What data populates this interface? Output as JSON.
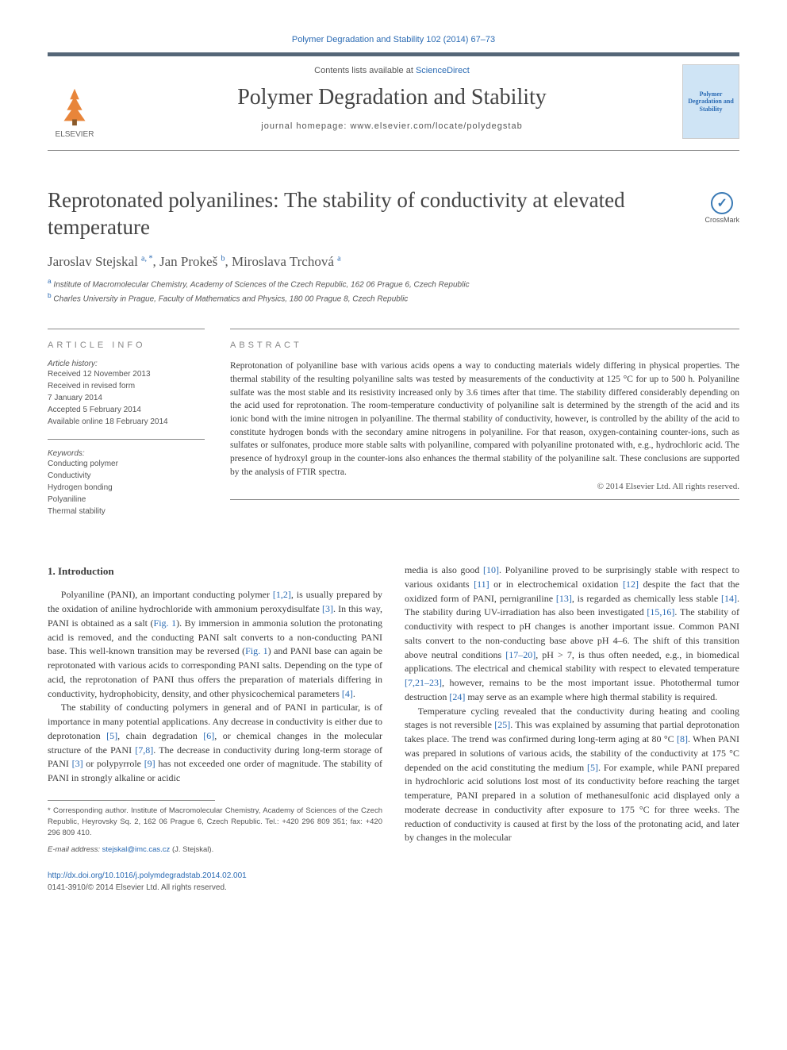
{
  "citation": "Polymer Degradation and Stability 102 (2014) 67–73",
  "header": {
    "contents_prefix": "Contents lists available at ",
    "contents_link": "ScienceDirect",
    "journal": "Polymer Degradation and Stability",
    "homepage_prefix": "journal homepage: ",
    "homepage": "www.elsevier.com/locate/polydegstab",
    "publisher": "ELSEVIER",
    "cover_text": "Polymer Degradation and Stability"
  },
  "crossmark": "CrossMark",
  "title": "Reprotonated polyanilines: The stability of conductivity at elevated temperature",
  "authors_html": "Jaroslav Stejskal <sup>a, *</sup>, Jan Prokeš <sup>b</sup>, Miroslava Trchová <sup>a</sup>",
  "affiliations": [
    "a Institute of Macromolecular Chemistry, Academy of Sciences of the Czech Republic, 162 06 Prague 6, Czech Republic",
    "b Charles University in Prague, Faculty of Mathematics and Physics, 180 00 Prague 8, Czech Republic"
  ],
  "article_info": {
    "heading": "ARTICLE INFO",
    "history_label": "Article history:",
    "history": [
      "Received 12 November 2013",
      "Received in revised form",
      "7 January 2014",
      "Accepted 5 February 2014",
      "Available online 18 February 2014"
    ],
    "keywords_label": "Keywords:",
    "keywords": [
      "Conducting polymer",
      "Conductivity",
      "Hydrogen bonding",
      "Polyaniline",
      "Thermal stability"
    ]
  },
  "abstract": {
    "heading": "ABSTRACT",
    "text": "Reprotonation of polyaniline base with various acids opens a way to conducting materials widely differing in physical properties. The thermal stability of the resulting polyaniline salts was tested by measurements of the conductivity at 125 °C for up to 500 h. Polyaniline sulfate was the most stable and its resistivity increased only by 3.6 times after that time. The stability differed considerably depending on the acid used for reprotonation. The room-temperature conductivity of polyaniline salt is determined by the strength of the acid and its ionic bond with the imine nitrogen in polyaniline. The thermal stability of conductivity, however, is controlled by the ability of the acid to constitute hydrogen bonds with the secondary amine nitrogens in polyaniline. For that reason, oxygen-containing counter-ions, such as sulfates or sulfonates, produce more stable salts with polyaniline, compared with polyaniline protonated with, e.g., hydrochloric acid. The presence of hydroxyl group in the counter-ions also enhances the thermal stability of the polyaniline salt. These conclusions are supported by the analysis of FTIR spectra.",
    "copyright": "© 2014 Elsevier Ltd. All rights reserved."
  },
  "intro": {
    "heading": "1. Introduction",
    "p1_a": "Polyaniline (PANI), an important conducting polymer ",
    "r1": "[1,2]",
    "p1_b": ", is usually prepared by the oxidation of aniline hydrochloride with ammonium peroxydisulfate ",
    "r2": "[3]",
    "p1_c": ". In this way, PANI is obtained as a salt (",
    "f1": "Fig. 1",
    "p1_d": "). By immersion in ammonia solution the protonating acid is removed, and the conducting PANI salt converts to a non-conducting PANI base. This well-known transition may be reversed (",
    "f2": "Fig. 1",
    "p1_e": ") and PANI base can again be reprotonated with various acids to corresponding PANI salts. Depending on the type of acid, the reprotonation of PANI thus offers the preparation of materials differing in conductivity, hydrophobicity, density, and other physicochemical parameters ",
    "r3": "[4]",
    "p1_f": ".",
    "p2_a": "The stability of conducting polymers in general and of PANI in particular, is of importance in many potential applications. Any decrease in conductivity is either due to deprotonation ",
    "r4": "[5]",
    "p2_b": ", chain degradation ",
    "r5": "[6]",
    "p2_c": ", or chemical changes in the molecular structure of the PANI ",
    "r6": "[7,8]",
    "p2_d": ". The decrease in conductivity during long-term storage of PANI ",
    "r7": "[3]",
    "p2_e": " or polypyrrole ",
    "r8": "[9]",
    "p2_f": " has not exceeded one order of magnitude. The stability of PANI in strongly alkaline or acidic ",
    "p3_a": "media is also good ",
    "r9": "[10]",
    "p3_b": ". Polyaniline proved to be surprisingly stable with respect to various oxidants ",
    "r10": "[11]",
    "p3_c": " or in electrochemical oxidation ",
    "r11": "[12]",
    "p3_d": " despite the fact that the oxidized form of PANI, pernigraniline ",
    "r12": "[13]",
    "p3_e": ", is regarded as chemically less stable ",
    "r13": "[14]",
    "p3_f": ". The stability during UV-irradiation has also been investigated ",
    "r14": "[15,16]",
    "p3_g": ". The stability of conductivity with respect to pH changes is another important issue. Common PANI salts convert to the non-conducting base above pH 4–6. The shift of this transition above neutral conditions ",
    "r15": "[17–20]",
    "p3_h": ", pH > 7, is thus often needed, e.g., in biomedical applications. The electrical and chemical stability with respect to elevated temperature ",
    "r16": "[7,21–23]",
    "p3_i": ", however, remains to be the most important issue. Photothermal tumor destruction ",
    "r17": "[24]",
    "p3_j": " may serve as an example where high thermal stability is required.",
    "p4_a": "Temperature cycling revealed that the conductivity during heating and cooling stages is not reversible ",
    "r18": "[25]",
    "p4_b": ". This was explained by assuming that partial deprotonation takes place. The trend was confirmed during long-term aging at 80 °C ",
    "r19": "[8]",
    "p4_c": ". When PANI was prepared in solutions of various acids, the stability of the conductivity at 175 °C depended on the acid constituting the medium ",
    "r20": "[5]",
    "p4_d": ". For example, while PANI prepared in hydrochloric acid solutions lost most of its conductivity before reaching the target temperature, PANI prepared in a solution of methanesulfonic acid displayed only a moderate decrease in conductivity after exposure to 175 °C for three weeks. The reduction of conductivity is caused at first by the loss of the protonating acid, and later by changes in the molecular"
  },
  "footnote": {
    "corr": "* Corresponding author. Institute of Macromolecular Chemistry, Academy of Sciences of the Czech Republic, Heyrovsky Sq. 2, 162 06 Prague 6, Czech Republic. Tel.: +420 296 809 351; fax: +420 296 809 410.",
    "email_label": "E-mail address: ",
    "email": "stejskal@imc.cas.cz",
    "email_suffix": " (J. Stejskal)."
  },
  "doi": {
    "link": "http://dx.doi.org/10.1016/j.polymdegradstab.2014.02.001",
    "issn": "0141-3910/© 2014 Elsevier Ltd. All rights reserved."
  },
  "colors": {
    "link": "#2a6ab3",
    "text": "#3a3a3a",
    "rule": "#888888"
  }
}
